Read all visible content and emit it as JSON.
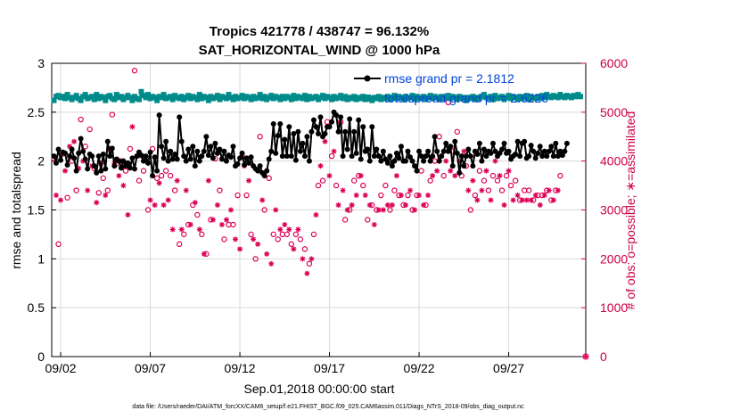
{
  "chart_data": {
    "type": "line",
    "title": "Tropics 421778 / 438747 = 96.132%",
    "subtitle": "SAT_HORIZONTAL_WIND @ 1000 hPa",
    "xlabel": "Sep.01,2018 00:00:00 start",
    "ylabel": "rmse and totalspread",
    "ylabel_right": "# of obs: o=possible; ∗=assimilated",
    "footnote": "data file: /Users/raeder/DAI/ATM_forcXX/CAM6_setup/f.e21.FHIST_BGC.f09_025.CAM6assim.011/Diags_NTrS_2018-09/obs_diag_output.nc",
    "xlim": [
      1.5,
      31.3
    ],
    "ylim": [
      0,
      3
    ],
    "ylim_right": [
      0,
      6000
    ],
    "x_ticks": [
      2,
      7,
      12,
      17,
      22,
      27
    ],
    "x_tick_labels": [
      "09/02",
      "09/07",
      "09/12",
      "09/17",
      "09/22",
      "09/27"
    ],
    "y_ticks": [
      "0",
      "0.5",
      "1",
      "1.5",
      "2",
      "2.5",
      "3"
    ],
    "y_ticks_right": [
      "0",
      "1000",
      "2000",
      "3000",
      "4000",
      "5000",
      "6000"
    ],
    "x_start": 1.625,
    "x_step": 0.125,
    "legend": [
      "rmse grand pr = 2.1812",
      "totalspread grand pr = 2.6226"
    ],
    "colors": {
      "rmse": "#000000",
      "spread": "#008b8b",
      "obs": "#dd0055",
      "legend_text": "#0044dd",
      "grid": "#d9d9d9"
    },
    "series": [
      {
        "name": "rmse",
        "axis": "left",
        "values": [
          2.05,
          1.98,
          2.12,
          2.01,
          2.09,
          2.08,
          1.96,
          2.05,
          2.12,
          2.03,
          1.9,
          2.08,
          2.23,
          2.1,
          2.02,
          1.92,
          2.07,
          2.05,
          1.95,
          1.88,
          2.05,
          1.9,
          2.07,
          1.92,
          2.2,
          2.05,
          2.13,
          1.95,
          2.02,
          2.0,
          1.93,
          2.0,
          1.95,
          1.98,
          1.93,
          2.03,
          1.92,
          2.05,
          2.09,
          2.06,
          2.0,
          2.05,
          1.98,
          2.09,
          1.85,
          2.04,
          1.9,
          2.47,
          2.15,
          2.03,
          2.2,
          2.0,
          2.1,
          2.02,
          2.07,
          2.02,
          2.45,
          2.2,
          2.05,
          2.0,
          2.12,
          2.02,
          2.15,
          1.95,
          2.1,
          2.0,
          2.05,
          2.1,
          2.25,
          2.06,
          2.15,
          2.03,
          2.18,
          2.08,
          2.12,
          2.02,
          2.1,
          2.0,
          2.06,
          2.04,
          2.15,
          1.95,
          1.97,
          2.03,
          2.08,
          1.96,
          2.03,
          1.98,
          2.04,
          1.95,
          1.92,
          1.9,
          1.95,
          1.88,
          1.85,
          1.9,
          2.02,
          2.1,
          2.38,
          2.08,
          2.26,
          2.38,
          2.05,
          2.22,
          2.05,
          2.35,
          2.05,
          2.28,
          2.01,
          2.3,
          2.1,
          2.18,
          2.05,
          2.25,
          2.0,
          2.3,
          2.42,
          2.35,
          2.28,
          2.45,
          2.25,
          2.28,
          2.35,
          2.35,
          2.4,
          2.5,
          2.47,
          2.3,
          2.45,
          2.05,
          2.3,
          2.12,
          2.43,
          2.05,
          2.3,
          2.08,
          2.42,
          2.02,
          2.35,
          2.1,
          2.12,
          2.0,
          2.35,
          2.05,
          2.12,
          2.05,
          2.0,
          2.1,
          2.02,
          1.98,
          2.05,
          1.95,
          2.0,
          2.08,
          2.03,
          2.15,
          2.0,
          2.0,
          2.1,
          2.04,
          2.0,
          1.95,
          1.9,
          2.1,
          2.05,
          2.0,
          2.05,
          2.1,
          2.0,
          2.05,
          2.25,
          2.1,
          2.0,
          2.05,
          2.1,
          2.18,
          2.1,
          2.15,
          1.95,
          2.2,
          2.08,
          1.88,
          2.05,
          1.95,
          2.05,
          2.12,
          2.05,
          1.95,
          2.1,
          2.07,
          2.18,
          2.0,
          2.12,
          2.05,
          2.1,
          2.08,
          2.18,
          2.1,
          2.05,
          2.08,
          2.12,
          2.18,
          2.08,
          2.1,
          2.02,
          2.05,
          2.07,
          2.2,
          2.05,
          2.18,
          2.2,
          2.03,
          2.05,
          2.16,
          2.1,
          2.03,
          2.08,
          2.15,
          2.05,
          2.1,
          2.05,
          2.1,
          2.15,
          2.05,
          2.18,
          2.05,
          2.1,
          2.06,
          2.1,
          2.18
        ]
      },
      {
        "name": "totalspread",
        "axis": "left",
        "values": [
          2.62,
          2.66,
          2.67,
          2.65,
          2.66,
          2.64,
          2.68,
          2.65,
          2.63,
          2.65,
          2.67,
          2.64,
          2.62,
          2.66,
          2.68,
          2.64,
          2.65,
          2.66,
          2.63,
          2.68,
          2.64,
          2.66,
          2.65,
          2.62,
          2.66,
          2.67,
          2.64,
          2.63,
          2.68,
          2.65,
          2.66,
          2.63,
          2.65,
          2.67,
          2.65,
          2.62,
          2.66,
          2.64,
          2.63,
          2.71,
          2.67,
          2.65,
          2.68,
          2.64,
          2.66,
          2.65,
          2.62,
          2.66,
          2.65,
          2.68,
          2.64,
          2.65,
          2.66,
          2.63,
          2.67,
          2.65,
          2.64,
          2.66,
          2.63,
          2.65,
          2.67,
          2.64,
          2.66,
          2.65,
          2.63,
          2.68,
          2.64,
          2.66,
          2.65,
          2.62,
          2.66,
          2.64,
          2.65,
          2.67,
          2.63,
          2.66,
          2.65,
          2.64,
          2.68,
          2.65,
          2.63,
          2.66,
          2.64,
          2.65,
          2.67,
          2.64,
          2.66,
          2.65,
          2.63,
          2.66,
          2.64,
          2.65,
          2.68,
          2.64,
          2.66,
          2.63,
          2.65,
          2.67,
          2.64,
          2.66,
          2.65,
          2.63,
          2.66,
          2.64,
          2.66,
          2.65,
          2.63,
          2.67,
          2.64,
          2.66,
          2.65,
          2.64,
          2.67,
          2.63,
          2.66,
          2.64,
          2.65,
          2.66,
          2.63,
          2.65,
          2.67,
          2.64,
          2.66,
          2.65,
          2.63,
          2.66,
          2.64,
          2.65,
          2.67,
          2.64,
          2.66,
          2.63,
          2.65,
          2.64,
          2.66,
          2.63,
          2.65,
          2.64,
          2.66,
          2.63,
          2.65,
          2.64,
          2.62,
          2.65,
          2.64,
          2.66,
          2.63,
          2.65,
          2.64,
          2.66,
          2.63,
          2.65,
          2.67,
          2.64,
          2.66,
          2.65,
          2.63,
          2.66,
          2.64,
          2.65,
          2.67,
          2.63,
          2.66,
          2.64,
          2.65,
          2.66,
          2.63,
          2.65,
          2.67,
          2.64,
          2.66,
          2.65,
          2.63,
          2.66,
          2.64,
          2.65,
          2.67,
          2.64,
          2.66,
          2.65,
          2.63,
          2.66,
          2.64,
          2.65,
          2.62,
          2.65,
          2.64,
          2.66,
          2.63,
          2.65,
          2.64,
          2.66,
          2.68,
          2.65,
          2.64,
          2.66,
          2.63,
          2.67,
          2.64,
          2.65,
          2.66,
          2.63,
          2.65,
          2.67,
          2.64,
          2.66,
          2.65,
          2.63,
          2.66,
          2.64,
          2.65,
          2.67,
          2.63,
          2.66,
          2.64,
          2.65,
          2.66,
          2.64,
          2.67,
          2.65,
          2.68,
          2.66,
          2.65,
          2.67,
          2.66,
          2.65,
          2.68,
          2.66,
          2.65,
          2.67,
          2.66,
          2.65,
          2.67,
          2.66,
          2.68,
          2.66
        ]
      },
      {
        "name": "obs possible",
        "axis": "right",
        "marker": "o",
        "values": [
          4050,
          3350,
          2300,
          3300,
          4150,
          3900,
          3250,
          4400,
          4000,
          4500,
          3400,
          3950,
          4850,
          4100,
          4300,
          3500,
          4650,
          4000,
          3850,
          3250,
          3350,
          4050,
          3650,
          3400,
          3400,
          4350,
          4950,
          4050,
          3950,
          3800,
          4000,
          3600,
          3800,
          3000,
          4250,
          4800,
          5850,
          4200,
          3600,
          4200,
          3800,
          4100,
          3000,
          3300,
          4250,
          3200,
          3650,
          3650,
          3700,
          3200,
          3800,
          3300,
          3700,
          2700,
          3400,
          3700,
          2300,
          2700,
          2500,
          3500,
          2700,
          2800,
          3100,
          3250,
          2900,
          2700,
          2500,
          2200,
          2100,
          3700,
          2800,
          2900,
          4050,
          3200,
          3400,
          2800,
          2400,
          2900,
          2700,
          3100,
          2700,
          2500,
          3300,
          2300,
          4100,
          4000,
          3300,
          3700,
          2500,
          2500,
          2000,
          2400,
          4500,
          3300,
          3000,
          2200,
          3650,
          2000,
          2500,
          3100,
          2400,
          2700,
          2500,
          2800,
          2500,
          2700,
          2300,
          2300,
          2500,
          2700,
          2400,
          2100,
          2200,
          1800,
          1900,
          2100,
          2500,
          3000,
          3500,
          4000,
          3600,
          4500,
          4800,
          3800,
          4100,
          4300,
          3500,
          3200,
          4800,
          3500,
          2800,
          3100,
          3000,
          3200,
          3600,
          3400,
          3700,
          3800,
          3500,
          3400,
          2800,
          3200,
          3100,
          2800,
          3000,
          3100,
          3300,
          3100,
          3500,
          3200,
          3000,
          3200,
          3400,
          3800,
          3300,
          3400,
          3100,
          3200,
          3300,
          3500,
          3000,
          3100,
          3300,
          3400,
          3800,
          3200,
          3100,
          3400,
          3600,
          3800,
          4000,
          3900,
          4500,
          4200,
          3700,
          4100,
          5200,
          3900,
          4200,
          3800,
          4600,
          4100,
          3700,
          4300,
          3900,
          3500,
          3000,
          3700,
          3300,
          3300,
          3800,
          3500,
          3600,
          3900,
          3400,
          3300,
          3700,
          4100,
          3600,
          3800,
          3400,
          3200,
          3700,
          3900,
          3500,
          3300,
          3600,
          3400,
          3200,
          3300,
          3400,
          3300,
          3400,
          3300,
          3200,
          3400,
          3300,
          3200,
          3300,
          3400,
          3400,
          3500,
          3200,
          3300,
          3400,
          3500,
          3700
        ]
      },
      {
        "name": "obs assimilated",
        "axis": "right",
        "marker": "*",
        "values": [
          3950,
          3300,
          2200,
          3200,
          4050,
          3800,
          3150,
          4300,
          3900,
          4400,
          3300,
          3850,
          4750,
          4000,
          4200,
          3400,
          4550,
          3900,
          3750,
          3150,
          3250,
          3950,
          3550,
          3300,
          3300,
          4250,
          4850,
          3950,
          3850,
          3700,
          3900,
          3500,
          3700,
          2900,
          4150,
          4700,
          5750,
          4100,
          3500,
          4100,
          3700,
          4000,
          2900,
          3200,
          4150,
          3100,
          3550,
          3550,
          3600,
          3100,
          3700,
          3200,
          3600,
          2600,
          3300,
          3600,
          2200,
          2600,
          2400,
          3400,
          2600,
          2700,
          3000,
          3150,
          2800,
          2600,
          2400,
          2100,
          2000,
          3600,
          2700,
          2800,
          3950,
          3100,
          3300,
          2700,
          2300,
          2800,
          2600,
          3000,
          2600,
          2400,
          3200,
          2200,
          4000,
          3900,
          3200,
          3600,
          2400,
          2400,
          1900,
          2300,
          4400,
          3200,
          2900,
          2100,
          3550,
          1900,
          2400,
          3000,
          2300,
          2600,
          2400,
          2700,
          2400,
          2600,
          2200,
          2200,
          2400,
          2600,
          2300,
          2000,
          2100,
          1700,
          1800,
          2000,
          2400,
          2900,
          3400,
          3900,
          3500,
          4400,
          4700,
          3700,
          4000,
          4200,
          3400,
          3100,
          4700,
          3400,
          2700,
          3000,
          2900,
          3100,
          3500,
          3300,
          3600,
          3700,
          3400,
          3300,
          2700,
          3100,
          3000,
          2700,
          2900,
          3000,
          3200,
          3000,
          3400,
          3100,
          2900,
          3100,
          3300,
          3700,
          3200,
          3300,
          3000,
          3100,
          3200,
          3400,
          2900,
          3000,
          3200,
          3300,
          3700,
          3100,
          3000,
          3300,
          3500,
          3700,
          3900,
          3800,
          4400,
          4100,
          3600,
          4000,
          5100,
          3800,
          4100,
          3700,
          4500,
          4000,
          3600,
          4200,
          3800,
          3400,
          2900,
          3600,
          3200,
          3200,
          3700,
          3400,
          3500,
          3800,
          3300,
          3200,
          3600,
          4000,
          3500,
          3700,
          3300,
          3100,
          3600,
          3800,
          3400,
          3200,
          3500,
          3300,
          3100,
          3200,
          3300,
          3200,
          3300,
          3200,
          3100,
          3300,
          3200,
          3100,
          3200,
          3300,
          3300,
          3400,
          3100,
          3200,
          3300,
          3400,
          3600
        ]
      }
    ],
    "last_point": {
      "x": 31.3,
      "possible": 0,
      "assimilated": 0
    }
  }
}
